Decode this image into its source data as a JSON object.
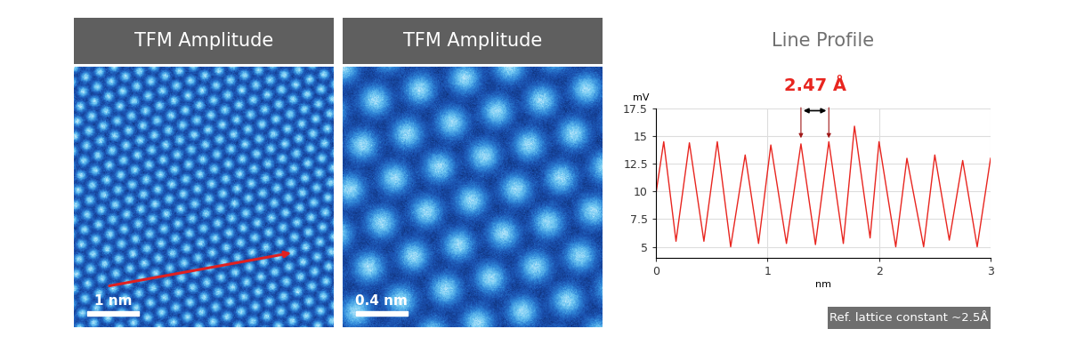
{
  "panels": [
    {
      "title": "TFM Amplitude",
      "scale_bar": "1 nm"
    },
    {
      "title": "TFM Amplitude",
      "scale_bar": "0.4 nm"
    }
  ],
  "chart_data": {
    "type": "line",
    "title": "Line Profile",
    "x_label": "nm",
    "y_label": "mV",
    "x": [
      0.0,
      0.07,
      0.18,
      0.3,
      0.43,
      0.55,
      0.67,
      0.8,
      0.92,
      1.03,
      1.17,
      1.3,
      1.43,
      1.55,
      1.68,
      1.78,
      1.92,
      2.0,
      2.15,
      2.25,
      2.4,
      2.5,
      2.63,
      2.75,
      2.88,
      3.0
    ],
    "values": [
      9.8,
      14.5,
      5.5,
      14.4,
      5.5,
      14.5,
      5.0,
      13.3,
      5.3,
      14.2,
      5.3,
      14.3,
      5.2,
      14.5,
      5.3,
      15.9,
      5.8,
      14.5,
      5.0,
      13.0,
      5.0,
      13.3,
      5.6,
      12.8,
      5.0,
      13.0
    ],
    "color": "#e8251f",
    "xlim": [
      0,
      3
    ],
    "xticks": [
      0,
      1,
      2,
      3
    ],
    "ylim": [
      4,
      17.5
    ],
    "yticks": [
      5,
      7.5,
      10,
      12.5,
      15,
      17.5
    ],
    "grid": true,
    "annotation": {
      "text": "2.47 Å",
      "x": [
        1.3,
        1.55
      ],
      "color": "#e8251f"
    }
  },
  "footnote": "Ref. lattice constant ~2.5Å"
}
